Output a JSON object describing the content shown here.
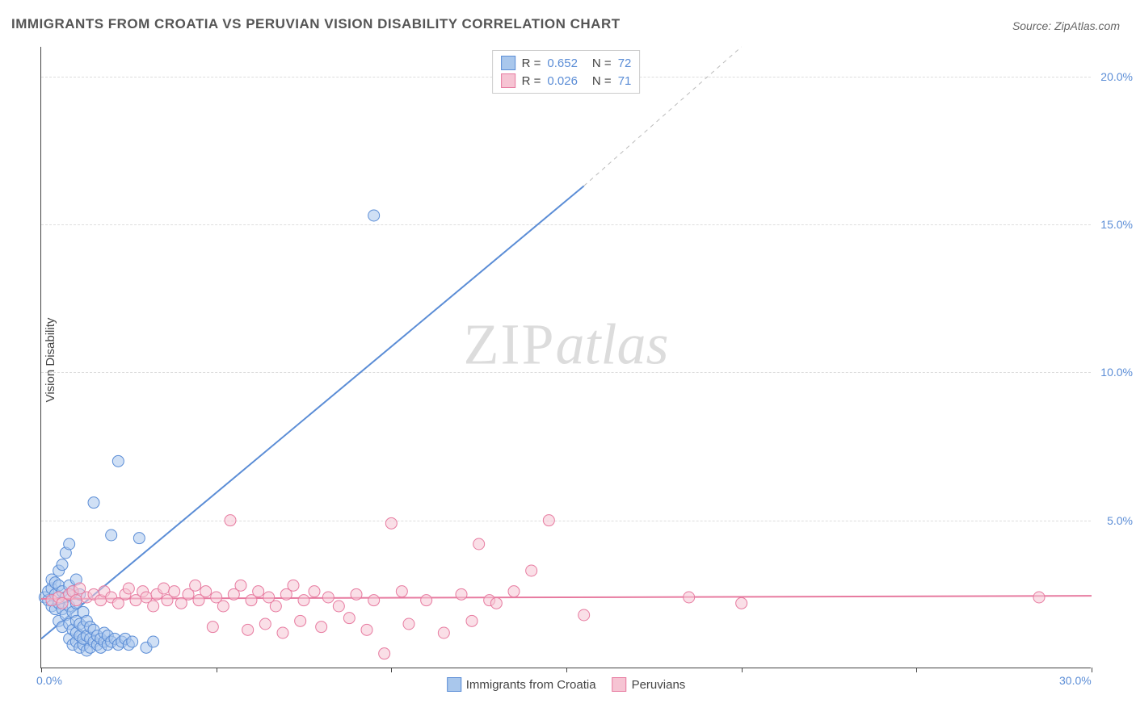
{
  "title": "IMMIGRANTS FROM CROATIA VS PERUVIAN VISION DISABILITY CORRELATION CHART",
  "source_label": "Source: ",
  "source_name": "ZipAtlas.com",
  "ylabel": "Vision Disability",
  "watermark_zip": "ZIP",
  "watermark_atlas": "atlas",
  "chart": {
    "type": "scatter",
    "background_color": "#ffffff",
    "grid_color": "#dddddd",
    "axis_color": "#444444",
    "tick_color": "#5b8dd6",
    "xlim": [
      0,
      30
    ],
    "ylim": [
      0,
      21
    ],
    "xticks": [
      0,
      5,
      10,
      15,
      20,
      25,
      30
    ],
    "xtick_labels": [
      "0.0%",
      "",
      "",
      "",
      "",
      "",
      "30.0%"
    ],
    "yticks": [
      5,
      10,
      15,
      20
    ],
    "ytick_labels": [
      "5.0%",
      "10.0%",
      "15.0%",
      "20.0%"
    ],
    "marker_radius": 7,
    "marker_opacity": 0.55,
    "line_width": 2,
    "series": [
      {
        "name": "Immigrants from Croatia",
        "color_fill": "#a9c7ec",
        "color_stroke": "#5b8dd6",
        "r_label": "R = ",
        "r_value": "0.652",
        "n_label": "N = ",
        "n_value": "72",
        "points": [
          [
            0.1,
            2.4
          ],
          [
            0.2,
            2.3
          ],
          [
            0.2,
            2.6
          ],
          [
            0.3,
            2.1
          ],
          [
            0.3,
            2.7
          ],
          [
            0.3,
            3.0
          ],
          [
            0.4,
            2.0
          ],
          [
            0.4,
            2.5
          ],
          [
            0.4,
            2.9
          ],
          [
            0.5,
            1.6
          ],
          [
            0.5,
            2.2
          ],
          [
            0.5,
            2.8
          ],
          [
            0.5,
            3.3
          ],
          [
            0.6,
            1.4
          ],
          [
            0.6,
            2.0
          ],
          [
            0.6,
            2.6
          ],
          [
            0.6,
            3.5
          ],
          [
            0.7,
            1.8
          ],
          [
            0.7,
            2.4
          ],
          [
            0.7,
            3.9
          ],
          [
            0.8,
            1.0
          ],
          [
            0.8,
            1.5
          ],
          [
            0.8,
            2.1
          ],
          [
            0.8,
            2.8
          ],
          [
            0.8,
            4.2
          ],
          [
            0.9,
            0.8
          ],
          [
            0.9,
            1.3
          ],
          [
            0.9,
            1.9
          ],
          [
            0.9,
            2.6
          ],
          [
            1.0,
            0.9
          ],
          [
            1.0,
            1.2
          ],
          [
            1.0,
            1.6
          ],
          [
            1.0,
            2.2
          ],
          [
            1.0,
            3.0
          ],
          [
            1.1,
            0.7
          ],
          [
            1.1,
            1.1
          ],
          [
            1.1,
            1.5
          ],
          [
            1.1,
            2.5
          ],
          [
            1.2,
            0.8
          ],
          [
            1.2,
            1.0
          ],
          [
            1.2,
            1.4
          ],
          [
            1.2,
            1.9
          ],
          [
            1.3,
            0.6
          ],
          [
            1.3,
            1.1
          ],
          [
            1.3,
            1.6
          ],
          [
            1.4,
            0.7
          ],
          [
            1.4,
            1.0
          ],
          [
            1.4,
            1.4
          ],
          [
            1.5,
            0.9
          ],
          [
            1.5,
            1.3
          ],
          [
            1.5,
            5.6
          ],
          [
            1.6,
            0.8
          ],
          [
            1.6,
            1.1
          ],
          [
            1.7,
            0.7
          ],
          [
            1.7,
            1.0
          ],
          [
            1.8,
            0.9
          ],
          [
            1.8,
            1.2
          ],
          [
            1.9,
            0.8
          ],
          [
            1.9,
            1.1
          ],
          [
            2.0,
            0.9
          ],
          [
            2.0,
            4.5
          ],
          [
            2.1,
            1.0
          ],
          [
            2.2,
            0.8
          ],
          [
            2.2,
            7.0
          ],
          [
            2.3,
            0.9
          ],
          [
            2.4,
            1.0
          ],
          [
            2.5,
            0.8
          ],
          [
            2.6,
            0.9
          ],
          [
            2.8,
            4.4
          ],
          [
            3.0,
            0.7
          ],
          [
            3.2,
            0.9
          ],
          [
            9.5,
            15.3
          ]
        ],
        "trend": {
          "x1": 0,
          "y1": 1.0,
          "x2": 15.5,
          "y2": 16.3,
          "dash_from_x": 15.5,
          "dash_to_x": 20,
          "dash_to_y": 21
        }
      },
      {
        "name": "Peruvians",
        "color_fill": "#f6c4d3",
        "color_stroke": "#e77ba0",
        "r_label": "R = ",
        "r_value": "0.026",
        "n_label": "N = ",
        "n_value": "71",
        "points": [
          [
            0.3,
            2.3
          ],
          [
            0.5,
            2.4
          ],
          [
            0.6,
            2.2
          ],
          [
            0.8,
            2.5
          ],
          [
            0.9,
            2.6
          ],
          [
            1.0,
            2.3
          ],
          [
            1.1,
            2.7
          ],
          [
            1.3,
            2.4
          ],
          [
            1.5,
            2.5
          ],
          [
            1.7,
            2.3
          ],
          [
            1.8,
            2.6
          ],
          [
            2.0,
            2.4
          ],
          [
            2.2,
            2.2
          ],
          [
            2.4,
            2.5
          ],
          [
            2.5,
            2.7
          ],
          [
            2.7,
            2.3
          ],
          [
            2.9,
            2.6
          ],
          [
            3.0,
            2.4
          ],
          [
            3.2,
            2.1
          ],
          [
            3.3,
            2.5
          ],
          [
            3.5,
            2.7
          ],
          [
            3.6,
            2.3
          ],
          [
            3.8,
            2.6
          ],
          [
            4.0,
            2.2
          ],
          [
            4.2,
            2.5
          ],
          [
            4.4,
            2.8
          ],
          [
            4.5,
            2.3
          ],
          [
            4.7,
            2.6
          ],
          [
            4.9,
            1.4
          ],
          [
            5.0,
            2.4
          ],
          [
            5.2,
            2.1
          ],
          [
            5.4,
            5.0
          ],
          [
            5.5,
            2.5
          ],
          [
            5.7,
            2.8
          ],
          [
            5.9,
            1.3
          ],
          [
            6.0,
            2.3
          ],
          [
            6.2,
            2.6
          ],
          [
            6.4,
            1.5
          ],
          [
            6.5,
            2.4
          ],
          [
            6.7,
            2.1
          ],
          [
            6.9,
            1.2
          ],
          [
            7.0,
            2.5
          ],
          [
            7.2,
            2.8
          ],
          [
            7.4,
            1.6
          ],
          [
            7.5,
            2.3
          ],
          [
            7.8,
            2.6
          ],
          [
            8.0,
            1.4
          ],
          [
            8.2,
            2.4
          ],
          [
            8.5,
            2.1
          ],
          [
            8.8,
            1.7
          ],
          [
            9.0,
            2.5
          ],
          [
            9.3,
            1.3
          ],
          [
            9.5,
            2.3
          ],
          [
            9.8,
            0.5
          ],
          [
            10.0,
            4.9
          ],
          [
            10.3,
            2.6
          ],
          [
            10.5,
            1.5
          ],
          [
            11.0,
            2.3
          ],
          [
            11.5,
            1.2
          ],
          [
            12.0,
            2.5
          ],
          [
            12.3,
            1.6
          ],
          [
            12.5,
            4.2
          ],
          [
            12.8,
            2.3
          ],
          [
            13.5,
            2.6
          ],
          [
            14.0,
            3.3
          ],
          [
            14.5,
            5.0
          ],
          [
            15.5,
            1.8
          ],
          [
            18.5,
            2.4
          ],
          [
            20.0,
            2.2
          ],
          [
            28.5,
            2.4
          ],
          [
            13.0,
            2.2
          ]
        ],
        "trend": {
          "x1": 0,
          "y1": 2.35,
          "x2": 30,
          "y2": 2.45
        }
      }
    ]
  }
}
